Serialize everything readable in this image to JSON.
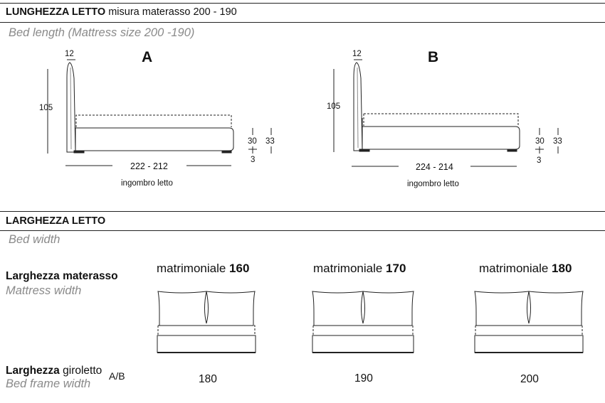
{
  "length_section": {
    "title_bold": "LUNGHEZZA LETTO",
    "title_rest": "misura materasso 200 - 190",
    "subtitle": "Bed length (Mattress size 200 -190)",
    "diagrams": [
      {
        "letter": "A",
        "headboard_thickness": "12",
        "height": "105",
        "overall_length": "222 - 212",
        "caption": "ingombro letto",
        "base_height": "30",
        "total_height": "33",
        "foot_height": "3"
      },
      {
        "letter": "B",
        "headboard_thickness": "12",
        "height": "105",
        "overall_length": "224 - 214",
        "caption": "ingombro letto",
        "base_height": "30",
        "total_height": "33",
        "foot_height": "3"
      }
    ]
  },
  "width_section": {
    "title": "LARGHEZZA LETTO",
    "subtitle": "Bed width",
    "mattress_label_bold": "Larghezza materasso",
    "mattress_label_en": "Mattress width",
    "frame_label_bold": "Larghezza",
    "frame_label_rest": "giroletto",
    "frame_label_suffix": "A/B",
    "frame_label_en": "Bed frame width",
    "columns": [
      {
        "name": "matrimoniale",
        "size": "160",
        "frame_width": "180"
      },
      {
        "name": "matrimoniale",
        "size": "170",
        "frame_width": "190"
      },
      {
        "name": "matrimoniale",
        "size": "180",
        "frame_width": "200"
      }
    ]
  }
}
